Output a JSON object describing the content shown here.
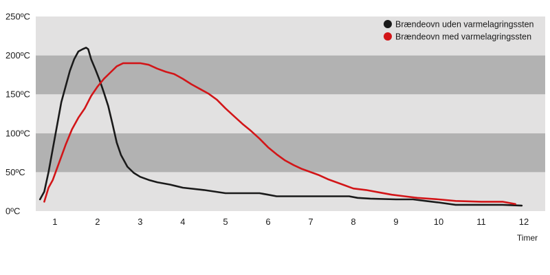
{
  "chart_data": {
    "type": "line",
    "xlabel": "Timer",
    "ylabel": "",
    "xlim": [
      0.55,
      12.5
    ],
    "ylim": [
      0,
      250
    ],
    "x_ticks": [
      1,
      2,
      3,
      4,
      5,
      6,
      7,
      8,
      9,
      10,
      11,
      12
    ],
    "x_tick_labels": [
      "1",
      "2",
      "3",
      "4",
      "5",
      "6",
      "7",
      "8",
      "9",
      "10",
      "11",
      "12"
    ],
    "y_ticks": [
      0,
      50,
      100,
      150,
      200,
      250
    ],
    "y_tick_labels": [
      "0ºC",
      "50ºC",
      "100ºC",
      "150ºC",
      "200ºC",
      "250ºC"
    ],
    "bands": [
      {
        "from": 0,
        "to": 50,
        "color": "#e2e1e1"
      },
      {
        "from": 50,
        "to": 100,
        "color": "#b2b2b2"
      },
      {
        "from": 100,
        "to": 150,
        "color": "#e2e1e1"
      },
      {
        "from": 150,
        "to": 200,
        "color": "#b2b2b2"
      },
      {
        "from": 200,
        "to": 250,
        "color": "#e2e1e1"
      }
    ],
    "grid": false,
    "legend_position": "top-right",
    "series": [
      {
        "name": "Brændeovn uden varmelagringssten",
        "color": "#1a1a1a",
        "points": [
          [
            0.65,
            15
          ],
          [
            0.75,
            25
          ],
          [
            0.85,
            50
          ],
          [
            0.95,
            80
          ],
          [
            1.05,
            110
          ],
          [
            1.15,
            140
          ],
          [
            1.25,
            160
          ],
          [
            1.35,
            180
          ],
          [
            1.45,
            195
          ],
          [
            1.55,
            205
          ],
          [
            1.65,
            208
          ],
          [
            1.73,
            210
          ],
          [
            1.78,
            208
          ],
          [
            1.85,
            195
          ],
          [
            1.95,
            182
          ],
          [
            2.05,
            168
          ],
          [
            2.15,
            152
          ],
          [
            2.25,
            135
          ],
          [
            2.35,
            112
          ],
          [
            2.45,
            88
          ],
          [
            2.55,
            72
          ],
          [
            2.7,
            57
          ],
          [
            2.85,
            49
          ],
          [
            3.0,
            44
          ],
          [
            3.2,
            40
          ],
          [
            3.4,
            37
          ],
          [
            3.7,
            34
          ],
          [
            4.0,
            30
          ],
          [
            4.5,
            27
          ],
          [
            5.0,
            23
          ],
          [
            5.5,
            23
          ],
          [
            5.8,
            23
          ],
          [
            6.0,
            21
          ],
          [
            6.2,
            19
          ],
          [
            6.5,
            19
          ],
          [
            7.0,
            19
          ],
          [
            7.5,
            19
          ],
          [
            7.9,
            19
          ],
          [
            8.1,
            17
          ],
          [
            8.4,
            16
          ],
          [
            9.0,
            15
          ],
          [
            9.4,
            15
          ],
          [
            9.7,
            13
          ],
          [
            10.0,
            11
          ],
          [
            10.4,
            8
          ],
          [
            11.0,
            8
          ],
          [
            11.5,
            8
          ],
          [
            11.95,
            7
          ]
        ]
      },
      {
        "name": "Brændeovn med varmelagringssten",
        "color": "#d21518",
        "points": [
          [
            0.75,
            12
          ],
          [
            0.85,
            30
          ],
          [
            0.95,
            40
          ],
          [
            1.05,
            55
          ],
          [
            1.15,
            70
          ],
          [
            1.25,
            85
          ],
          [
            1.4,
            105
          ],
          [
            1.55,
            120
          ],
          [
            1.7,
            132
          ],
          [
            1.85,
            148
          ],
          [
            2.0,
            160
          ],
          [
            2.15,
            170
          ],
          [
            2.3,
            178
          ],
          [
            2.45,
            186
          ],
          [
            2.6,
            190
          ],
          [
            2.8,
            190
          ],
          [
            3.0,
            190
          ],
          [
            3.2,
            188
          ],
          [
            3.4,
            183
          ],
          [
            3.6,
            179
          ],
          [
            3.8,
            176
          ],
          [
            4.0,
            170
          ],
          [
            4.2,
            163
          ],
          [
            4.4,
            157
          ],
          [
            4.6,
            151
          ],
          [
            4.8,
            143
          ],
          [
            5.0,
            132
          ],
          [
            5.2,
            122
          ],
          [
            5.4,
            112
          ],
          [
            5.6,
            103
          ],
          [
            5.8,
            93
          ],
          [
            6.0,
            82
          ],
          [
            6.2,
            73
          ],
          [
            6.4,
            65
          ],
          [
            6.6,
            59
          ],
          [
            6.8,
            54
          ],
          [
            7.0,
            50
          ],
          [
            7.2,
            46
          ],
          [
            7.4,
            41
          ],
          [
            7.6,
            37
          ],
          [
            7.8,
            33
          ],
          [
            8.0,
            29
          ],
          [
            8.3,
            27
          ],
          [
            8.6,
            24
          ],
          [
            8.9,
            21
          ],
          [
            9.2,
            19
          ],
          [
            9.5,
            17
          ],
          [
            10.0,
            15
          ],
          [
            10.4,
            13
          ],
          [
            11.0,
            12
          ],
          [
            11.5,
            12
          ],
          [
            11.8,
            9
          ]
        ]
      }
    ]
  }
}
